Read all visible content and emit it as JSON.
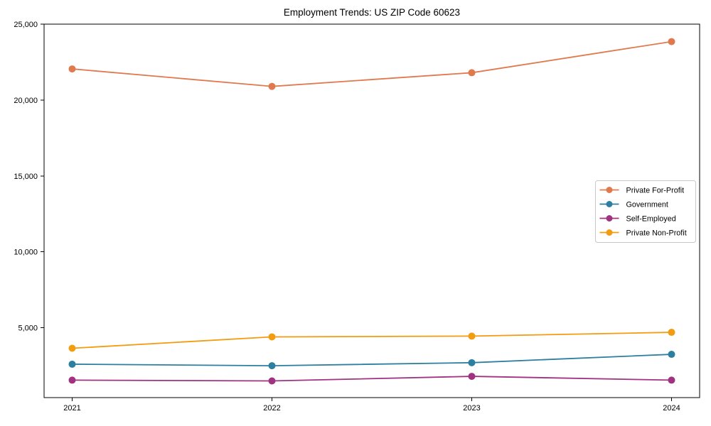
{
  "title": "Employment Trends: US ZIP Code 60623",
  "chart_data": {
    "type": "line",
    "title": "Employment Trends: US ZIP Code 60623",
    "categories": [
      "2021",
      "2022",
      "2023",
      "2024"
    ],
    "series": [
      {
        "name": "Private For-Profit",
        "color": "#e07a4e",
        "values": [
          22050,
          20900,
          21800,
          23850
        ]
      },
      {
        "name": "Government",
        "color": "#2d7fa0",
        "values": [
          2600,
          2500,
          2700,
          3250
        ]
      },
      {
        "name": "Self-Employed",
        "color": "#a03280",
        "values": [
          1550,
          1500,
          1800,
          1550
        ]
      },
      {
        "name": "Private Non-Profit",
        "color": "#f29c0f",
        "values": [
          3650,
          4400,
          4450,
          4700
        ]
      }
    ],
    "xlabel": "",
    "ylabel": "",
    "ylim": [
      400,
      25000
    ],
    "yticks": [
      5000,
      10000,
      15000,
      20000,
      25000
    ],
    "ytick_labels": [
      "5,000",
      "10,000",
      "15,000",
      "20,000",
      "25,000"
    ],
    "grid": false,
    "legend_position": "center right",
    "marker": "circle"
  },
  "colors": {
    "background": "#ffffff",
    "axis": "#000000",
    "tick_label": "#000000",
    "legend_border": "#c8c8c8",
    "legend_background": "#ffffff"
  }
}
